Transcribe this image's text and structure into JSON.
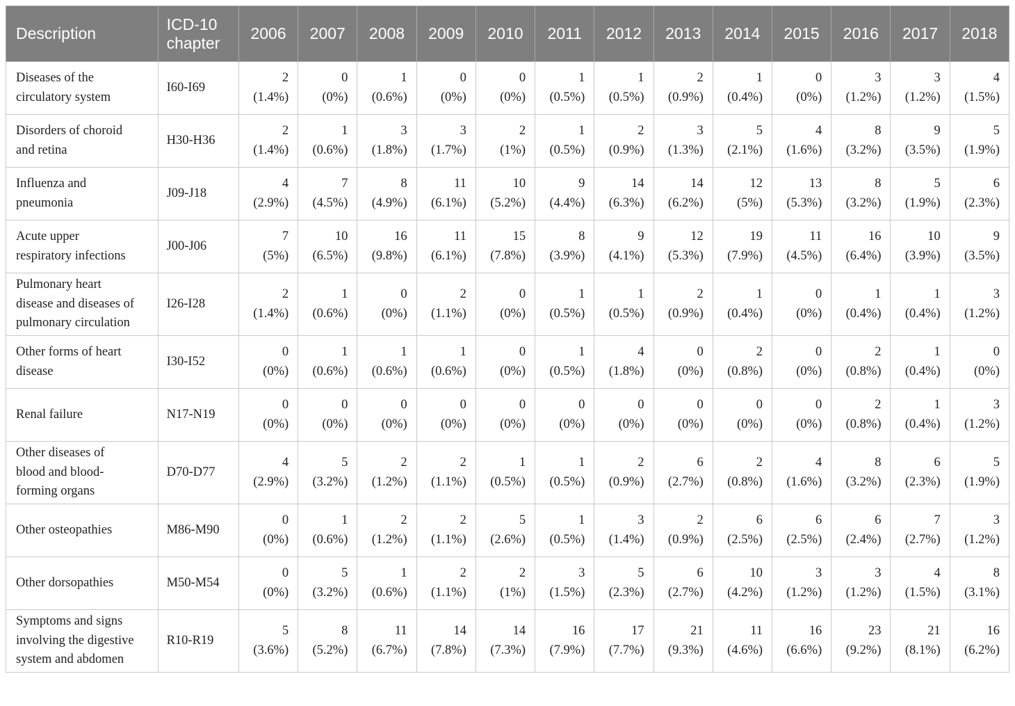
{
  "table": {
    "headers": {
      "description": "Description",
      "icd_line1": "ICD-10",
      "icd_line2": "chapter",
      "years": [
        "2006",
        "2007",
        "2008",
        "2009",
        "2010",
        "2011",
        "2012",
        "2013",
        "2014",
        "2015",
        "2016",
        "2017",
        "2018"
      ]
    },
    "rows": [
      {
        "desc": [
          "Diseases of the",
          "circulatory system"
        ],
        "icd": "I60-I69",
        "cells": [
          [
            "2",
            "(1.4%)"
          ],
          [
            "0",
            "(0%)"
          ],
          [
            "1",
            "(0.6%)"
          ],
          [
            "0",
            "(0%)"
          ],
          [
            "0",
            "(0%)"
          ],
          [
            "1",
            "(0.5%)"
          ],
          [
            "1",
            "(0.5%)"
          ],
          [
            "2",
            "(0.9%)"
          ],
          [
            "1",
            "(0.4%)"
          ],
          [
            "0",
            "(0%)"
          ],
          [
            "3",
            "(1.2%)"
          ],
          [
            "3",
            "(1.2%)"
          ],
          [
            "4",
            "(1.5%)"
          ]
        ]
      },
      {
        "desc": [
          "Disorders of choroid",
          "and retina"
        ],
        "icd": "H30-H36",
        "cells": [
          [
            "2",
            "(1.4%)"
          ],
          [
            "1",
            "(0.6%)"
          ],
          [
            "3",
            "(1.8%)"
          ],
          [
            "3",
            "(1.7%)"
          ],
          [
            "2",
            "(1%)"
          ],
          [
            "1",
            "(0.5%)"
          ],
          [
            "2",
            "(0.9%)"
          ],
          [
            "3",
            "(1.3%)"
          ],
          [
            "5",
            "(2.1%)"
          ],
          [
            "4",
            "(1.6%)"
          ],
          [
            "8",
            "(3.2%)"
          ],
          [
            "9",
            "(3.5%)"
          ],
          [
            "5",
            "(1.9%)"
          ]
        ]
      },
      {
        "desc": [
          "Influenza and",
          "pneumonia"
        ],
        "icd": "J09-J18",
        "cells": [
          [
            "4",
            "(2.9%)"
          ],
          [
            "7",
            "(4.5%)"
          ],
          [
            "8",
            "(4.9%)"
          ],
          [
            "11",
            "(6.1%)"
          ],
          [
            "10",
            "(5.2%)"
          ],
          [
            "9",
            "(4.4%)"
          ],
          [
            "14",
            "(6.3%)"
          ],
          [
            "14",
            "(6.2%)"
          ],
          [
            "12",
            "(5%)"
          ],
          [
            "13",
            "(5.3%)"
          ],
          [
            "8",
            "(3.2%)"
          ],
          [
            "5",
            "(1.9%)"
          ],
          [
            "6",
            "(2.3%)"
          ]
        ]
      },
      {
        "desc": [
          "Acute upper",
          "respiratory infections"
        ],
        "icd": "J00-J06",
        "cells": [
          [
            "7",
            "(5%)"
          ],
          [
            "10",
            "(6.5%)"
          ],
          [
            "16",
            "(9.8%)"
          ],
          [
            "11",
            "(6.1%)"
          ],
          [
            "15",
            "(7.8%)"
          ],
          [
            "8",
            "(3.9%)"
          ],
          [
            "9",
            "(4.1%)"
          ],
          [
            "12",
            "(5.3%)"
          ],
          [
            "19",
            "(7.9%)"
          ],
          [
            "11",
            "(4.5%)"
          ],
          [
            "16",
            "(6.4%)"
          ],
          [
            "10",
            "(3.9%)"
          ],
          [
            "9",
            "(3.5%)"
          ]
        ]
      },
      {
        "desc": [
          "Pulmonary heart",
          "disease and diseases of",
          "pulmonary circulation"
        ],
        "icd": "I26-I28",
        "cells": [
          [
            "2",
            "(1.4%)"
          ],
          [
            "1",
            "(0.6%)"
          ],
          [
            "0",
            "(0%)"
          ],
          [
            "2",
            "(1.1%)"
          ],
          [
            "0",
            "(0%)"
          ],
          [
            "1",
            "(0.5%)"
          ],
          [
            "1",
            "(0.5%)"
          ],
          [
            "2",
            "(0.9%)"
          ],
          [
            "1",
            "(0.4%)"
          ],
          [
            "0",
            "(0%)"
          ],
          [
            "1",
            "(0.4%)"
          ],
          [
            "1",
            "(0.4%)"
          ],
          [
            "3",
            "(1.2%)"
          ]
        ]
      },
      {
        "desc": [
          "Other forms of heart",
          "disease"
        ],
        "icd": "I30-I52",
        "cells": [
          [
            "0",
            "(0%)"
          ],
          [
            "1",
            "(0.6%)"
          ],
          [
            "1",
            "(0.6%)"
          ],
          [
            "1",
            "(0.6%)"
          ],
          [
            "0",
            "(0%)"
          ],
          [
            "1",
            "(0.5%)"
          ],
          [
            "4",
            "(1.8%)"
          ],
          [
            "0",
            "(0%)"
          ],
          [
            "2",
            "(0.8%)"
          ],
          [
            "0",
            "(0%)"
          ],
          [
            "2",
            "(0.8%)"
          ],
          [
            "1",
            "(0.4%)"
          ],
          [
            "0",
            "(0%)"
          ]
        ]
      },
      {
        "desc": [
          "Renal failure"
        ],
        "icd": "N17-N19",
        "cells": [
          [
            "0",
            "(0%)"
          ],
          [
            "0",
            "(0%)"
          ],
          [
            "0",
            "(0%)"
          ],
          [
            "0",
            "(0%)"
          ],
          [
            "0",
            "(0%)"
          ],
          [
            "0",
            "(0%)"
          ],
          [
            "0",
            "(0%)"
          ],
          [
            "0",
            "(0%)"
          ],
          [
            "0",
            "(0%)"
          ],
          [
            "0",
            "(0%)"
          ],
          [
            "2",
            "(0.8%)"
          ],
          [
            "1",
            "(0.4%)"
          ],
          [
            "3",
            "(1.2%)"
          ]
        ]
      },
      {
        "desc": [
          "Other diseases of",
          "blood and blood-",
          "forming organs"
        ],
        "icd": "D70-D77",
        "cells": [
          [
            "4",
            "(2.9%)"
          ],
          [
            "5",
            "(3.2%)"
          ],
          [
            "2",
            "(1.2%)"
          ],
          [
            "2",
            "(1.1%)"
          ],
          [
            "1",
            "(0.5%)"
          ],
          [
            "1",
            "(0.5%)"
          ],
          [
            "2",
            "(0.9%)"
          ],
          [
            "6",
            "(2.7%)"
          ],
          [
            "2",
            "(0.8%)"
          ],
          [
            "4",
            "(1.6%)"
          ],
          [
            "8",
            "(3.2%)"
          ],
          [
            "6",
            "(2.3%)"
          ],
          [
            "5",
            "(1.9%)"
          ]
        ]
      },
      {
        "desc": [
          "Other osteopathies"
        ],
        "icd": "M86-M90",
        "cells": [
          [
            "0",
            "(0%)"
          ],
          [
            "1",
            "(0.6%)"
          ],
          [
            "2",
            "(1.2%)"
          ],
          [
            "2",
            "(1.1%)"
          ],
          [
            "5",
            "(2.6%)"
          ],
          [
            "1",
            "(0.5%)"
          ],
          [
            "3",
            "(1.4%)"
          ],
          [
            "2",
            "(0.9%)"
          ],
          [
            "6",
            "(2.5%)"
          ],
          [
            "6",
            "(2.5%)"
          ],
          [
            "6",
            "(2.4%)"
          ],
          [
            "7",
            "(2.7%)"
          ],
          [
            "3",
            "(1.2%)"
          ]
        ]
      },
      {
        "desc": [
          "Other dorsopathies"
        ],
        "icd": "M50-M54",
        "cells": [
          [
            "0",
            "(0%)"
          ],
          [
            "5",
            "(3.2%)"
          ],
          [
            "1",
            "(0.6%)"
          ],
          [
            "2",
            "(1.1%)"
          ],
          [
            "2",
            "(1%)"
          ],
          [
            "3",
            "(1.5%)"
          ],
          [
            "5",
            "(2.3%)"
          ],
          [
            "6",
            "(2.7%)"
          ],
          [
            "10",
            "(4.2%)"
          ],
          [
            "3",
            "(1.2%)"
          ],
          [
            "3",
            "(1.2%)"
          ],
          [
            "4",
            "(1.5%)"
          ],
          [
            "8",
            "(3.1%)"
          ]
        ]
      },
      {
        "desc": [
          "Symptoms and signs",
          "involving the digestive",
          "system and abdomen"
        ],
        "icd": "R10-R19",
        "cells": [
          [
            "5",
            "(3.6%)"
          ],
          [
            "8",
            "(5.2%)"
          ],
          [
            "11",
            "(6.7%)"
          ],
          [
            "14",
            "(7.8%)"
          ],
          [
            "14",
            "(7.3%)"
          ],
          [
            "16",
            "(7.9%)"
          ],
          [
            "17",
            "(7.7%)"
          ],
          [
            "21",
            "(9.3%)"
          ],
          [
            "11",
            "(4.6%)"
          ],
          [
            "16",
            "(6.6%)"
          ],
          [
            "23",
            "(9.2%)"
          ],
          [
            "21",
            "(8.1%)"
          ],
          [
            "16",
            "(6.2%)"
          ]
        ]
      }
    ]
  }
}
